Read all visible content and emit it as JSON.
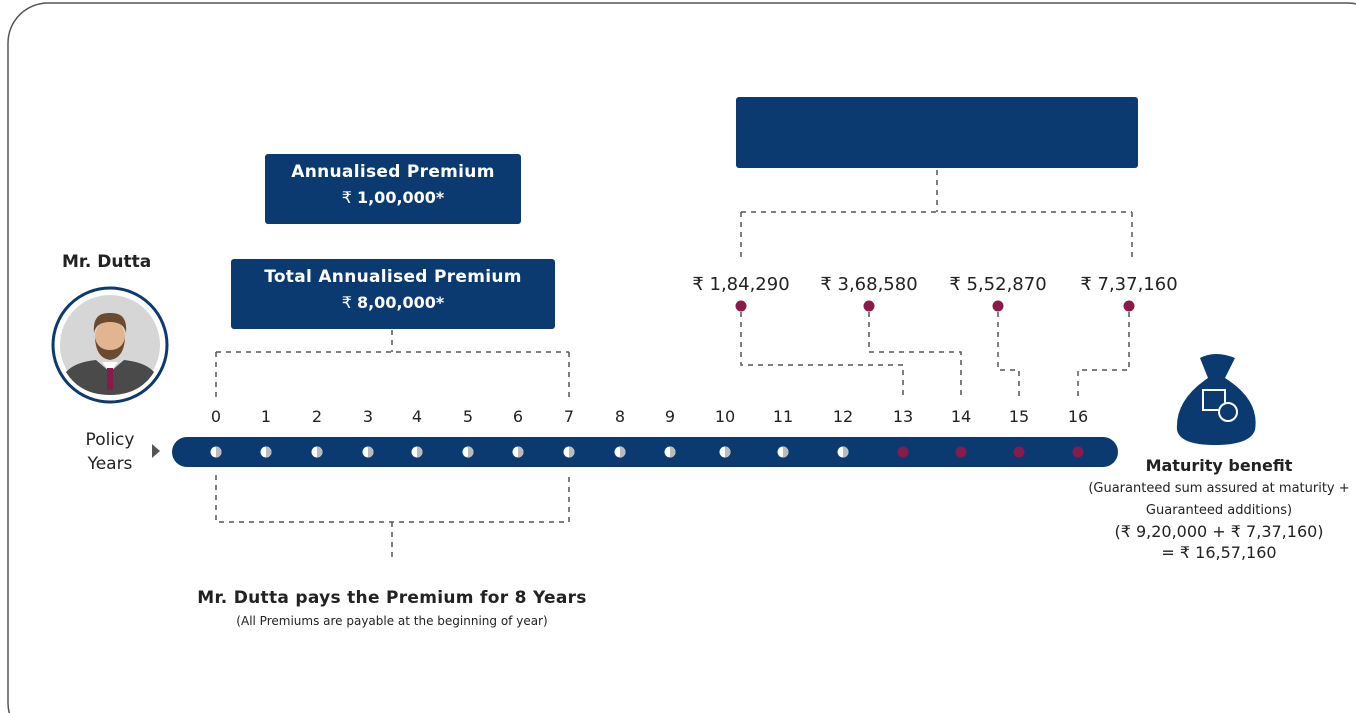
{
  "person": {
    "name": "Mr. Dutta"
  },
  "annualised_premium": {
    "title": "Annualised Premium",
    "currency": "₹",
    "amount": "1,00,000*"
  },
  "total_premium": {
    "title": "Total Annualised Premium",
    "currency": "₹",
    "amount": "8,00,000*"
  },
  "payouts": [
    "₹ 1,84,290",
    "₹ 3,68,580",
    "₹ 5,52,870",
    "₹ 7,37,160"
  ],
  "timeline": {
    "label": "Policy Years",
    "years": [
      0,
      1,
      2,
      3,
      4,
      5,
      6,
      7,
      8,
      9,
      10,
      11,
      12,
      13,
      14,
      15,
      16
    ]
  },
  "payment_note": {
    "title": "Mr. Dutta pays the Premium for 8 Years",
    "subtitle": "(All Premiums are payable at the beginning of year)"
  },
  "maturity": {
    "title": "Maturity benefit",
    "lines": [
      "(Guaranteed sum assured at maturity + Guaranteed additions)",
      "(₹ 9,20,000 + ₹ 7,37,160)",
      "= ₹ 16,57,160"
    ]
  }
}
